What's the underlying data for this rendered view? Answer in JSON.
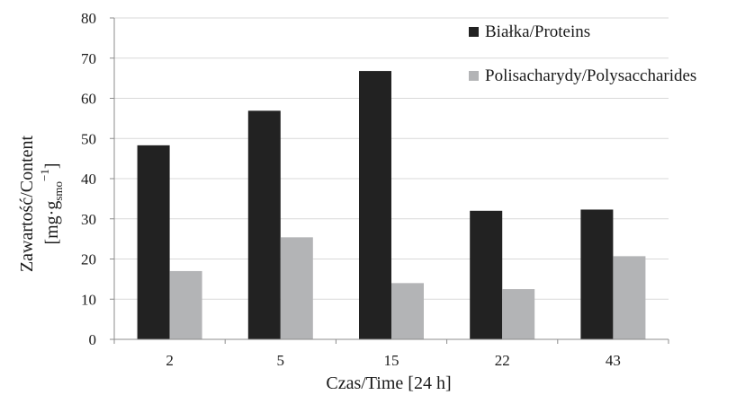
{
  "chart_data": {
    "type": "bar",
    "categories": [
      "2",
      "5",
      "15",
      "22",
      "43"
    ],
    "series": [
      {
        "name": "Białka/Proteins",
        "values": [
          48.3,
          56.9,
          66.8,
          32.0,
          32.3
        ],
        "color": "#222222"
      },
      {
        "name": "Polisacharydy/Polysaccharides",
        "values": [
          17.0,
          25.4,
          14.0,
          12.5,
          20.7
        ],
        "color": "#b3b4b6"
      }
    ],
    "title": "",
    "xlabel": "Czas/Time [24 h]",
    "ylabel_line1": "Zawartość/Content",
    "ylabel_unit_open": "[mg·g",
    "ylabel_unit_sub": "smo",
    "ylabel_unit_sup": "−1",
    "ylabel_unit_close": "]",
    "ylim": [
      0,
      80
    ],
    "yticks": [
      0,
      10,
      20,
      30,
      40,
      50,
      60,
      70,
      80
    ],
    "grid": "horizontal",
    "legend_position": "top-right"
  }
}
